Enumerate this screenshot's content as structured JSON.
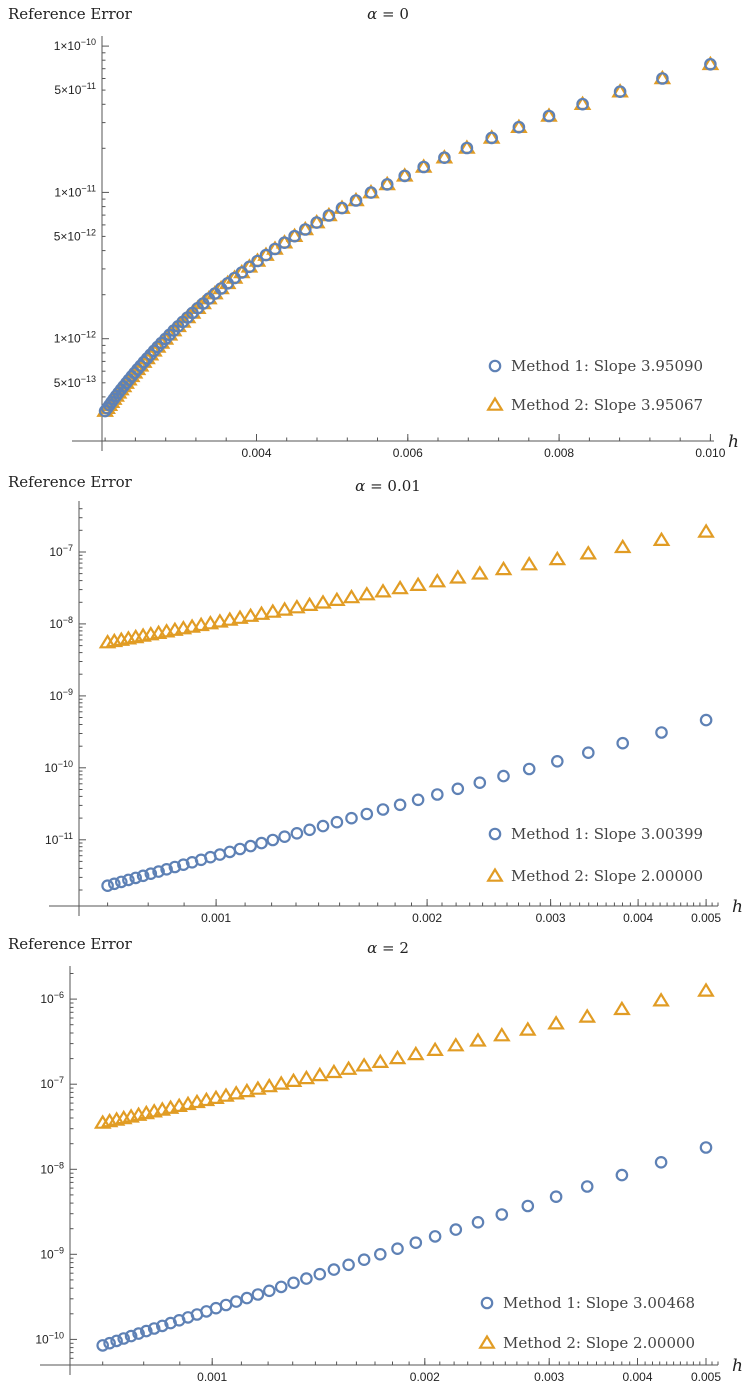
{
  "colors": {
    "method1": "#5e81b5",
    "method2": "#e19c24",
    "axis": "#555555"
  },
  "chart_data": [
    {
      "type": "scatter",
      "title": "α = 0",
      "ylabel": "Reference Error",
      "xlabel": "h",
      "log_y": true,
      "xlim": [
        0.0018,
        0.0101
      ],
      "ylim": [
        2e-13,
        1.1e-10
      ],
      "x_ticks": [
        0.004,
        0.006,
        0.008,
        0.01
      ],
      "x_tick_labels": [
        "0.004",
        "0.006",
        "0.008",
        "0.010"
      ],
      "y_ticks": [
        5e-13,
        1e-12,
        5e-12,
        1e-11,
        5e-11,
        1e-10
      ],
      "y_tick_labels": [
        {
          "mant": "5",
          "exp": "−13"
        },
        {
          "mant": "1",
          "exp": "−12"
        },
        {
          "mant": "5",
          "exp": "−12"
        },
        {
          "mant": "1",
          "exp": "−11"
        },
        {
          "mant": "5",
          "exp": "−11"
        },
        {
          "mant": "1",
          "exp": "−10"
        }
      ],
      "legend_position": "bottom-right",
      "series": [
        {
          "name": "Method 1: Slope 3.95090",
          "marker": "circle",
          "x_range": [
            0.002,
            0.01
          ],
          "y_range": [
            3.2e-13,
            7.5e-11
          ],
          "n_points": 60
        },
        {
          "name": "Method 2: Slope 3.95067",
          "marker": "triangle",
          "x_range": [
            0.002,
            0.01
          ],
          "y_range": [
            3.2e-13,
            7.5e-11
          ],
          "n_points": 60
        }
      ]
    },
    {
      "type": "scatter",
      "title": "α = 0.01",
      "ylabel": "Reference Error",
      "xlabel": "h",
      "log_x": true,
      "log_y": true,
      "xlim": [
        0.00065,
        0.0052
      ],
      "ylim": [
        1.2e-12,
        4.5e-07
      ],
      "x_ticks": [
        0.001,
        0.002,
        0.003,
        0.004,
        0.005
      ],
      "x_tick_labels": [
        "0.001",
        "0.002",
        "0.003",
        "0.004",
        "0.005"
      ],
      "y_ticks": [
        1e-11,
        1e-10,
        1e-09,
        1e-08,
        1e-07
      ],
      "y_tick_labels": [
        {
          "mant": "",
          "exp": "−11"
        },
        {
          "mant": "",
          "exp": "−10"
        },
        {
          "mant": "",
          "exp": "−9"
        },
        {
          "mant": "",
          "exp": "−8"
        },
        {
          "mant": "",
          "exp": "−7"
        }
      ],
      "legend_position": "bottom-right",
      "series": [
        {
          "name": "Method 1: Slope 3.00399",
          "marker": "circle",
          "x_range": [
            0.0007,
            0.005
          ],
          "y_range": [
            2.3e-12,
            4.6e-10
          ],
          "n_points": 40
        },
        {
          "name": "Method 2: Slope 2.00000",
          "marker": "triangle",
          "x_range": [
            0.0007,
            0.005
          ],
          "y_range": [
            5.5e-09,
            1.9e-07
          ],
          "n_points": 40
        }
      ]
    },
    {
      "type": "scatter",
      "title": "α = 2",
      "ylabel": "Reference Error",
      "xlabel": "h",
      "log_x": true,
      "log_y": true,
      "xlim": [
        0.00065,
        0.0052
      ],
      "ylim": [
        5e-11,
        2.2e-06
      ],
      "x_ticks": [
        0.001,
        0.002,
        0.003,
        0.004,
        0.005
      ],
      "x_tick_labels": [
        "0.001",
        "0.002",
        "0.003",
        "0.004",
        "0.005"
      ],
      "y_ticks": [
        1e-10,
        1e-09,
        1e-08,
        1e-07,
        1e-06
      ],
      "y_tick_labels": [
        {
          "mant": "",
          "exp": "−10"
        },
        {
          "mant": "",
          "exp": "−9"
        },
        {
          "mant": "",
          "exp": "−8"
        },
        {
          "mant": "",
          "exp": "−7"
        },
        {
          "mant": "",
          "exp": "−6"
        }
      ],
      "legend_position": "bottom-right",
      "series": [
        {
          "name": "Method 1: Slope 3.00468",
          "marker": "circle",
          "x_range": [
            0.0007,
            0.005
          ],
          "y_range": [
            8.5e-11,
            1.8e-08
          ],
          "n_points": 40
        },
        {
          "name": "Method 2: Slope 2.00000",
          "marker": "triangle",
          "x_range": [
            0.0007,
            0.005
          ],
          "y_range": [
            3.5e-08,
            1.25e-06
          ],
          "n_points": 40
        }
      ]
    }
  ]
}
